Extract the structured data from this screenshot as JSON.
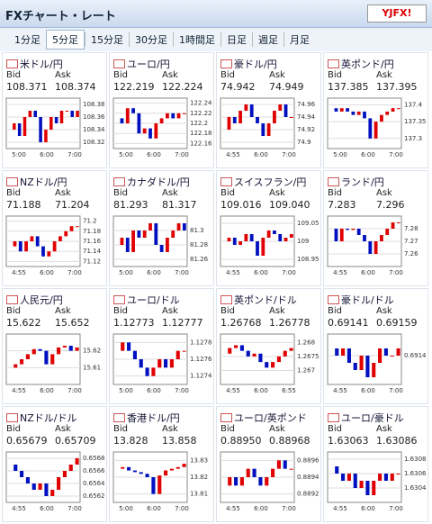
{
  "header": {
    "title": "FXチャート・レート",
    "logo": "YJFX!"
  },
  "tabs": [
    "1分足",
    "5分足",
    "15分足",
    "30分足",
    "1時間足",
    "日足",
    "週足",
    "月足"
  ],
  "selected_tab": 1,
  "bid_label": "Bid",
  "ask_label": "Ask",
  "panels": [
    {
      "name": "米ドル/円",
      "bid": "108.371",
      "ask": "108.374",
      "chart": {
        "type": "candlestick",
        "ylim": [
          108.31,
          108.39
        ],
        "yticks": [
          108.38,
          108.36,
          108.34,
          108.32
        ],
        "xticks": [
          "5:00",
          "6:00",
          "7:00"
        ],
        "values": [
          108.34,
          108.35,
          108.33,
          108.36,
          108.37,
          108.36,
          108.32,
          108.34,
          108.36,
          108.35,
          108.37,
          108.37,
          108.36,
          108.37
        ]
      }
    },
    {
      "name": "ユーロ/円",
      "bid": "122.219",
      "ask": "122.224",
      "chart": {
        "type": "candlestick",
        "ylim": [
          122.15,
          122.25
        ],
        "yticks": [
          122.24,
          122.22,
          122.2,
          122.18,
          122.16
        ],
        "xticks": [
          "5:00",
          "6:00",
          "7:00"
        ],
        "values": [
          122.21,
          122.2,
          122.23,
          122.22,
          122.18,
          122.19,
          122.17,
          122.2,
          122.21,
          122.22,
          122.21,
          122.22,
          122.22
        ]
      }
    },
    {
      "name": "豪ドル/円",
      "bid": "74.942",
      "ask": "74.949",
      "chart": {
        "type": "candlestick",
        "ylim": [
          74.89,
          74.97
        ],
        "yticks": [
          74.96,
          74.94,
          74.92,
          74.9
        ],
        "xticks": [
          "4:55",
          "6:00",
          "7:00"
        ],
        "values": [
          74.92,
          74.94,
          74.93,
          74.95,
          74.96,
          74.94,
          74.93,
          74.91,
          74.93,
          74.95,
          74.96,
          74.94,
          74.94
        ]
      }
    },
    {
      "name": "英ポンド/円",
      "bid": "137.385",
      "ask": "137.395",
      "chart": {
        "type": "candlestick",
        "ylim": [
          137.27,
          137.42
        ],
        "yticks": [
          137.4,
          137.35,
          137.3
        ],
        "xticks": [
          "5:00",
          "6:00",
          "7:00"
        ],
        "values": [
          137.39,
          137.38,
          137.39,
          137.38,
          137.37,
          137.38,
          137.36,
          137.3,
          137.35,
          137.37,
          137.38,
          137.39,
          137.39
        ]
      }
    },
    {
      "name": "NZドル/円",
      "bid": "71.188",
      "ask": "71.204",
      "chart": {
        "type": "candlestick",
        "ylim": [
          71.11,
          71.21
        ],
        "yticks": [
          71.2,
          71.18,
          71.16,
          71.14,
          71.12
        ],
        "xticks": [
          "4:55",
          "6:00",
          "7:00"
        ],
        "values": [
          71.15,
          71.16,
          71.14,
          71.16,
          71.17,
          71.15,
          71.13,
          71.14,
          71.16,
          71.17,
          71.18,
          71.19,
          71.19
        ]
      }
    },
    {
      "name": "カナダドル/円",
      "bid": "81.293",
      "ask": "81.317",
      "chart": {
        "type": "candlestick",
        "ylim": [
          81.25,
          81.32
        ],
        "yticks": [
          81.3,
          81.28,
          81.26
        ],
        "xticks": [
          "5:00",
          "6:00",
          "7:00"
        ],
        "values": [
          81.28,
          81.29,
          81.27,
          81.3,
          81.29,
          81.3,
          81.31,
          81.28,
          81.27,
          81.29,
          81.3,
          81.31,
          81.3
        ]
      }
    },
    {
      "name": "スイスフラン/円",
      "bid": "109.016",
      "ask": "109.040",
      "chart": {
        "type": "candlestick",
        "ylim": [
          108.93,
          109.07
        ],
        "yticks": [
          109.05,
          109,
          108.95
        ],
        "xticks": [
          "4:55",
          "6:00",
          "7:00"
        ],
        "values": [
          109.0,
          109.01,
          108.99,
          109.0,
          109.02,
          109.0,
          108.96,
          109.01,
          109.03,
          109.02,
          109.0,
          109.01,
          109.02
        ]
      }
    },
    {
      "name": "ランド/円",
      "bid": "7.283",
      "ask": "7.296",
      "chart": {
        "type": "candlestick",
        "ylim": [
          7.25,
          7.29
        ],
        "yticks": [
          7.28,
          7.27,
          7.26
        ],
        "xticks": [
          "4:55",
          "6:00",
          "7:00"
        ],
        "values": [
          7.28,
          7.27,
          7.28,
          7.279,
          7.28,
          7.275,
          7.27,
          7.26,
          7.27,
          7.275,
          7.28,
          7.285,
          7.285
        ]
      }
    },
    {
      "name": "人民元/円",
      "bid": "15.622",
      "ask": "15.652",
      "chart": {
        "type": "candlestick",
        "ylim": [
          15.6,
          15.63
        ],
        "yticks": [
          15.62,
          15.61
        ],
        "xticks": [
          "4:55",
          "6:00",
          "7:00"
        ],
        "values": [
          15.61,
          15.612,
          15.615,
          15.618,
          15.621,
          15.62,
          15.612,
          15.618,
          15.622,
          15.623,
          15.62,
          15.622
        ]
      }
    },
    {
      "name": "ユーロ/ドル",
      "bid": "1.12773",
      "ask": "1.12777",
      "chart": {
        "type": "candlestick",
        "ylim": [
          1.1273,
          1.1279
        ],
        "yticks": [
          1.1278,
          1.1276,
          1.1274
        ],
        "xticks": [
          "5:00",
          "6:00",
          "7:00"
        ],
        "values": [
          1.1277,
          1.1278,
          1.1277,
          1.1276,
          1.1275,
          1.1274,
          1.1275,
          1.1276,
          1.1275,
          1.1276,
          1.1277,
          1.1277
        ]
      }
    },
    {
      "name": "英ポンド/ドル",
      "bid": "1.26768",
      "ask": "1.26778",
      "chart": {
        "type": "candlestick",
        "ylim": [
          1.2665,
          1.2683
        ],
        "yticks": [
          1.268,
          1.2675,
          1.267
        ],
        "xticks": [
          "4:55",
          "6:00",
          "6:55"
        ],
        "values": [
          1.2676,
          1.2678,
          1.2679,
          1.2677,
          1.2675,
          1.2676,
          1.2673,
          1.2671,
          1.2673,
          1.2675,
          1.2677,
          1.2678
        ]
      }
    },
    {
      "name": "豪ドル/ドル",
      "bid": "0.69141",
      "ask": "0.69159",
      "chart": {
        "type": "candlestick",
        "ylim": [
          0.691,
          0.6917
        ],
        "yticks": [
          0.6914
        ],
        "xticks": [
          "4:55",
          "6:00",
          "7:00"
        ],
        "values": [
          0.6915,
          0.6914,
          0.6915,
          0.6913,
          0.6912,
          0.6914,
          0.6911,
          0.6913,
          0.6915,
          0.6914,
          0.6914,
          0.6915
        ]
      }
    },
    {
      "name": "NZドル/ドル",
      "bid": "0.65679",
      "ask": "0.65709",
      "chart": {
        "type": "candlestick",
        "ylim": [
          0.6561,
          0.6569
        ],
        "yticks": [
          0.6568,
          0.6566,
          0.6564,
          0.6562
        ],
        "xticks": [
          "4:55",
          "6:00",
          "7:00"
        ],
        "values": [
          0.6567,
          0.6566,
          0.6565,
          0.6564,
          0.6563,
          0.6564,
          0.6562,
          0.6563,
          0.6565,
          0.6566,
          0.6567,
          0.6568
        ]
      }
    },
    {
      "name": "香港ドル/円",
      "bid": "13.828",
      "ask": "13.858",
      "chart": {
        "type": "candlestick",
        "ylim": [
          13.805,
          13.835
        ],
        "yticks": [
          13.83,
          13.82,
          13.81
        ],
        "xticks": [
          "5:00",
          "6:00",
          "7:00"
        ],
        "values": [
          13.825,
          13.826,
          13.824,
          13.823,
          13.822,
          13.82,
          13.81,
          13.821,
          13.824,
          13.825,
          13.826,
          13.828
        ]
      }
    },
    {
      "name": "ユーロ/英ポンド",
      "bid": "0.88950",
      "ask": "0.88968",
      "chart": {
        "type": "candlestick",
        "ylim": [
          0.8891,
          0.8897
        ],
        "yticks": [
          0.8896,
          0.8894,
          0.8892
        ],
        "xticks": [
          "4:55",
          "6:00",
          "7:00"
        ],
        "values": [
          0.8893,
          0.8894,
          0.8893,
          0.8894,
          0.8895,
          0.8894,
          0.8893,
          0.8894,
          0.8895,
          0.8896,
          0.8895,
          0.8895
        ]
      }
    },
    {
      "name": "ユーロ/豪ドル",
      "bid": "1.63063",
      "ask": "1.63086",
      "chart": {
        "type": "candlestick",
        "ylim": [
          1.6302,
          1.6309
        ],
        "yticks": [
          1.6308,
          1.6306,
          1.6304
        ],
        "xticks": [
          "4:55",
          "6:00",
          "7:00"
        ],
        "values": [
          1.6307,
          1.6306,
          1.6305,
          1.6306,
          1.6304,
          1.6305,
          1.6303,
          1.6305,
          1.6306,
          1.6305,
          1.6306,
          1.6306
        ]
      }
    }
  ]
}
